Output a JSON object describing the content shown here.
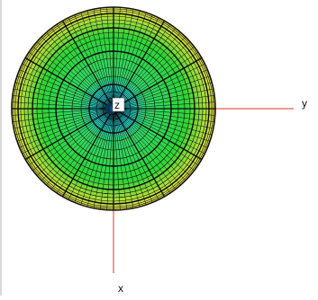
{
  "axes": {
    "x_label": "x",
    "y_label": "y",
    "z_label": "z",
    "axis_color": "#e8302c"
  },
  "shading": {
    "center_color": "#1ad2ee",
    "mid_color": "#29d43c",
    "rim_color": "#e6e44a",
    "mesh_color": "#0a0a0a"
  }
}
